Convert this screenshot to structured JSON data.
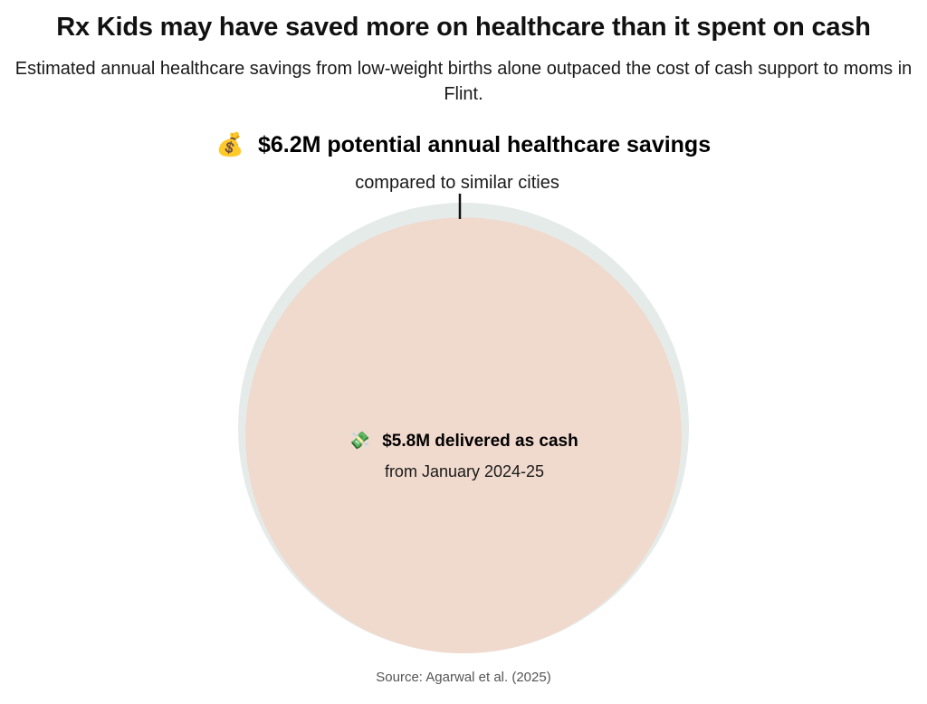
{
  "title": "Rx Kids may have saved more on healthcare than it spent on cash",
  "subtitle": "Estimated annual healthcare savings from low-weight births alone outpaced the cost of cash support to moms in Flint.",
  "source": "Source: Agarwal et al. (2025)",
  "colors": {
    "savings_circle": "#e5ebe8",
    "cash_circle": "#f0d9cd",
    "marker": "#111111"
  },
  "chart_data": {
    "type": "proportional-area",
    "title": "Rx Kids may have saved more on healthcare than it spent on cash",
    "subtitle": "Estimated annual healthcare savings from low-weight births alone outpaced the cost of cash support to moms in Flint.",
    "unit": "USD millions",
    "series": [
      {
        "name": "potential annual healthcare savings",
        "value": 6.2,
        "icon": "money-bag-icon",
        "icon_glyph": "💰",
        "label": "$6.2M potential annual healthcare savings",
        "sublabel": "compared to similar cities"
      },
      {
        "name": "delivered as cash",
        "value": 5.8,
        "icon": "flying-money-icon",
        "icon_glyph": "💸",
        "label": "$5.8M delivered as cash",
        "sublabel": "from January 2024-25"
      }
    ]
  }
}
